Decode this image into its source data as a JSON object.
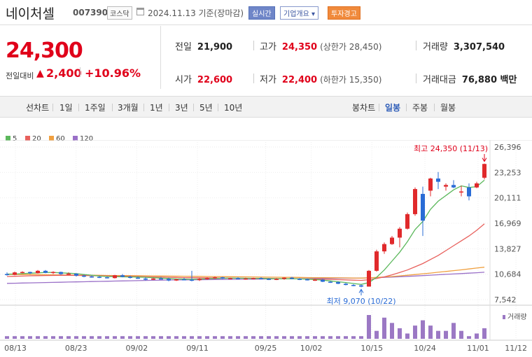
{
  "header": {
    "name": "네이처셀",
    "code": "007390",
    "market": "코스닥",
    "date": "2024.11.13 기준(장마감)",
    "realtime_badge": "실시간",
    "info_badge": "기업개요 ▾",
    "warning_badge": "투자경고"
  },
  "quote": {
    "price": "24,300",
    "change_label": "전일대비",
    "change_arrow": "▲",
    "change_value": "2,400",
    "change_pct": "+10.96%"
  },
  "stats": {
    "prev_label": "전일",
    "prev_value": "21,900",
    "high_label": "고가",
    "high_value": "24,350",
    "upper_limit": "(상한가 28,450)",
    "volume_label": "거래량",
    "volume_value": "3,307,540",
    "open_label": "시가",
    "open_value": "22,600",
    "low_label": "저가",
    "low_value": "22,400",
    "lower_limit": "(하한가 15,350)",
    "amount_label": "거래대금",
    "amount_value": "76,880 백만"
  },
  "period_tabs": {
    "label": "선차트",
    "items": [
      "1일",
      "1주일",
      "3개월",
      "1년",
      "3년",
      "5년",
      "10년"
    ]
  },
  "candle_tabs": {
    "label": "봉차트",
    "items": [
      "일봉",
      "주봉",
      "월봉"
    ],
    "selected": "일봉"
  },
  "chart_data": {
    "type": "candlestick",
    "legend": [
      {
        "name": "5",
        "color": "#5cb85c"
      },
      {
        "name": "20",
        "color": "#e8605c"
      },
      {
        "name": "60",
        "color": "#f0a040"
      },
      {
        "name": "120",
        "color": "#9a70c8"
      }
    ],
    "y_ticks": [
      "26,396",
      "23,253",
      "20,111",
      "16,969",
      "13,827",
      "10,684",
      "7,542"
    ],
    "ylim": [
      7542,
      26396
    ],
    "x_ticks": [
      "08/13",
      "08/23",
      "09/02",
      "09/11",
      "09/25",
      "10/02",
      "10/15",
      "10/24",
      "11/01",
      "11/12"
    ],
    "annotation_high": "최고 24,350 (11/13)",
    "annotation_low": "최저 9,070 (10/22)",
    "volume_label": "거래량",
    "candles": [
      [
        10700,
        10900,
        10500,
        10600
      ],
      [
        10600,
        11000,
        10550,
        10900
      ],
      [
        10900,
        11050,
        10800,
        10950
      ],
      [
        10950,
        11000,
        10700,
        10800
      ],
      [
        10800,
        11200,
        10750,
        11100
      ],
      [
        11100,
        11200,
        10800,
        10850
      ],
      [
        10850,
        11050,
        10700,
        10950
      ],
      [
        10950,
        11000,
        10600,
        10700
      ],
      [
        10700,
        10900,
        10600,
        10750
      ],
      [
        10750,
        10800,
        10400,
        10500
      ],
      [
        10500,
        10650,
        10300,
        10400
      ],
      [
        10400,
        10500,
        10250,
        10350
      ],
      [
        10350,
        10450,
        10200,
        10300
      ],
      [
        10300,
        10350,
        10150,
        10200
      ],
      [
        10200,
        10600,
        10150,
        10550
      ],
      [
        10550,
        10700,
        10300,
        10350
      ],
      [
        10350,
        10500,
        10150,
        10250
      ],
      [
        10250,
        10400,
        10100,
        10150
      ],
      [
        10150,
        10300,
        9900,
        10000
      ],
      [
        10000,
        10200,
        9950,
        10150
      ],
      [
        10150,
        10350,
        10050,
        10100
      ],
      [
        10100,
        10250,
        9800,
        9900
      ],
      [
        9900,
        10100,
        9850,
        10050
      ],
      [
        10050,
        10250,
        9950,
        10000
      ],
      [
        10000,
        11100,
        9800,
        9950
      ],
      [
        9950,
        10200,
        9850,
        10100
      ],
      [
        10100,
        10300,
        10000,
        10200
      ],
      [
        10200,
        10400,
        10100,
        10300
      ],
      [
        10300,
        10350,
        10100,
        10150
      ],
      [
        10150,
        10250,
        10050,
        10200
      ],
      [
        10200,
        10300,
        10050,
        10100
      ],
      [
        10100,
        10250,
        10000,
        10150
      ],
      [
        10150,
        10250,
        10050,
        10200
      ],
      [
        10200,
        10300,
        10050,
        10100
      ],
      [
        10100,
        10200,
        9950,
        10050
      ],
      [
        10050,
        10200,
        9950,
        10100
      ],
      [
        10100,
        10300,
        10000,
        10250
      ],
      [
        10250,
        10350,
        10050,
        10100
      ],
      [
        10100,
        10200,
        9950,
        10050
      ],
      [
        10050,
        10150,
        9900,
        9950
      ],
      [
        9950,
        10100,
        9850,
        10000
      ],
      [
        10000,
        10100,
        9700,
        9750
      ],
      [
        9750,
        9850,
        9600,
        9700
      ],
      [
        9700,
        9800,
        9450,
        9500
      ],
      [
        9500,
        9600,
        9300,
        9350
      ],
      [
        9350,
        9450,
        9200,
        9300
      ],
      [
        9300,
        9400,
        9070,
        9150
      ],
      [
        9150,
        11200,
        9150,
        11100
      ],
      [
        11100,
        13700,
        11000,
        13500
      ],
      [
        13500,
        14600,
        13200,
        14400
      ],
      [
        14400,
        15400,
        14300,
        15200
      ],
      [
        15200,
        16500,
        14000,
        16300
      ],
      [
        16300,
        18300,
        16200,
        18100
      ],
      [
        18100,
        21400,
        17900,
        21200
      ],
      [
        20600,
        21500,
        15400,
        17300
      ],
      [
        21000,
        22600,
        20300,
        22500
      ],
      [
        22500,
        23300,
        21200,
        22100
      ],
      [
        21500,
        21900,
        21000,
        21700
      ],
      [
        21700,
        22300,
        21300,
        21400
      ],
      [
        20800,
        21600,
        20300,
        20900
      ],
      [
        21400,
        21900,
        19800,
        20300
      ],
      [
        21400,
        22100,
        21300,
        21900
      ],
      [
        22600,
        24350,
        22400,
        24300
      ]
    ],
    "volume": [
      1,
      1,
      1,
      1,
      1,
      1,
      1,
      1,
      1,
      1,
      1,
      1,
      1,
      1,
      1,
      1,
      1,
      1,
      1,
      1,
      1,
      1,
      1,
      1,
      1,
      1,
      1,
      1,
      1,
      1,
      1,
      1,
      1,
      1,
      1,
      1,
      1,
      1,
      1,
      1,
      1,
      1,
      1,
      1,
      1,
      1,
      1,
      9,
      3,
      8,
      6,
      4,
      2,
      5,
      7,
      5,
      3,
      3,
      6,
      3,
      1,
      2,
      4
    ],
    "ma5": [
      10700,
      10700,
      10750,
      10800,
      10850,
      10900,
      10900,
      10850,
      10800,
      10750,
      10650,
      10550,
      10450,
      10400,
      10380,
      10350,
      10340,
      10330,
      10300,
      10250,
      10200,
      10150,
      10100,
      10080,
      10050,
      10080,
      10120,
      10150,
      10180,
      10200,
      10190,
      10180,
      10170,
      10160,
      10140,
      10120,
      10120,
      10110,
      10100,
      10070,
      10020,
      9950,
      9850,
      9750,
      9650,
      9530,
      9420,
      9650,
      10300,
      11200,
      12300,
      13400,
      14700,
      16200,
      17200,
      18700,
      19700,
      20400,
      21100,
      21600,
      21400,
      21500,
      22300
    ],
    "ma20": [
      10400,
      10420,
      10450,
      10480,
      10500,
      10520,
      10530,
      10540,
      10540,
      10530,
      10520,
      10500,
      10480,
      10460,
      10440,
      10420,
      10400,
      10380,
      10360,
      10340,
      10320,
      10300,
      10280,
      10260,
      10250,
      10240,
      10230,
      10220,
      10210,
      10200,
      10190,
      10180,
      10170,
      10160,
      10150,
      10140,
      10130,
      10120,
      10110,
      10100,
      10080,
      10060,
      10040,
      10010,
      9980,
      9950,
      9920,
      10000,
      10150,
      10350,
      10600,
      10900,
      11200,
      11600,
      12000,
      12500,
      13000,
      13600,
      14200,
      14800,
      15400,
      16100,
      16900
    ],
    "ma60": [
      10650,
      10650,
      10640,
      10630,
      10620,
      10610,
      10600,
      10590,
      10580,
      10570,
      10560,
      10550,
      10540,
      10530,
      10520,
      10510,
      10500,
      10490,
      10480,
      10470,
      10460,
      10450,
      10440,
      10430,
      10420,
      10410,
      10400,
      10390,
      10380,
      10370,
      10360,
      10350,
      10340,
      10330,
      10320,
      10310,
      10300,
      10290,
      10280,
      10270,
      10260,
      10250,
      10240,
      10230,
      10220,
      10210,
      10200,
      10230,
      10280,
      10340,
      10400,
      10470,
      10550,
      10640,
      10730,
      10820,
      10920,
      11020,
      11120,
      11220,
      11330,
      11440,
      11550
    ],
    "ma120": [
      9550,
      9570,
      9590,
      9610,
      9630,
      9650,
      9670,
      9690,
      9710,
      9730,
      9750,
      9770,
      9790,
      9810,
      9830,
      9850,
      9870,
      9890,
      9910,
      9930,
      9950,
      9960,
      9970,
      9980,
      9990,
      10000,
      10010,
      10020,
      10030,
      10040,
      10050,
      10060,
      10070,
      10080,
      10090,
      10100,
      10110,
      10120,
      10130,
      10140,
      10150,
      10160,
      10170,
      10180,
      10190,
      10200,
      10210,
      10230,
      10260,
      10290,
      10330,
      10370,
      10410,
      10460,
      10510,
      10560,
      10610,
      10660,
      10710,
      10760,
      10810,
      10860,
      10920
    ]
  }
}
